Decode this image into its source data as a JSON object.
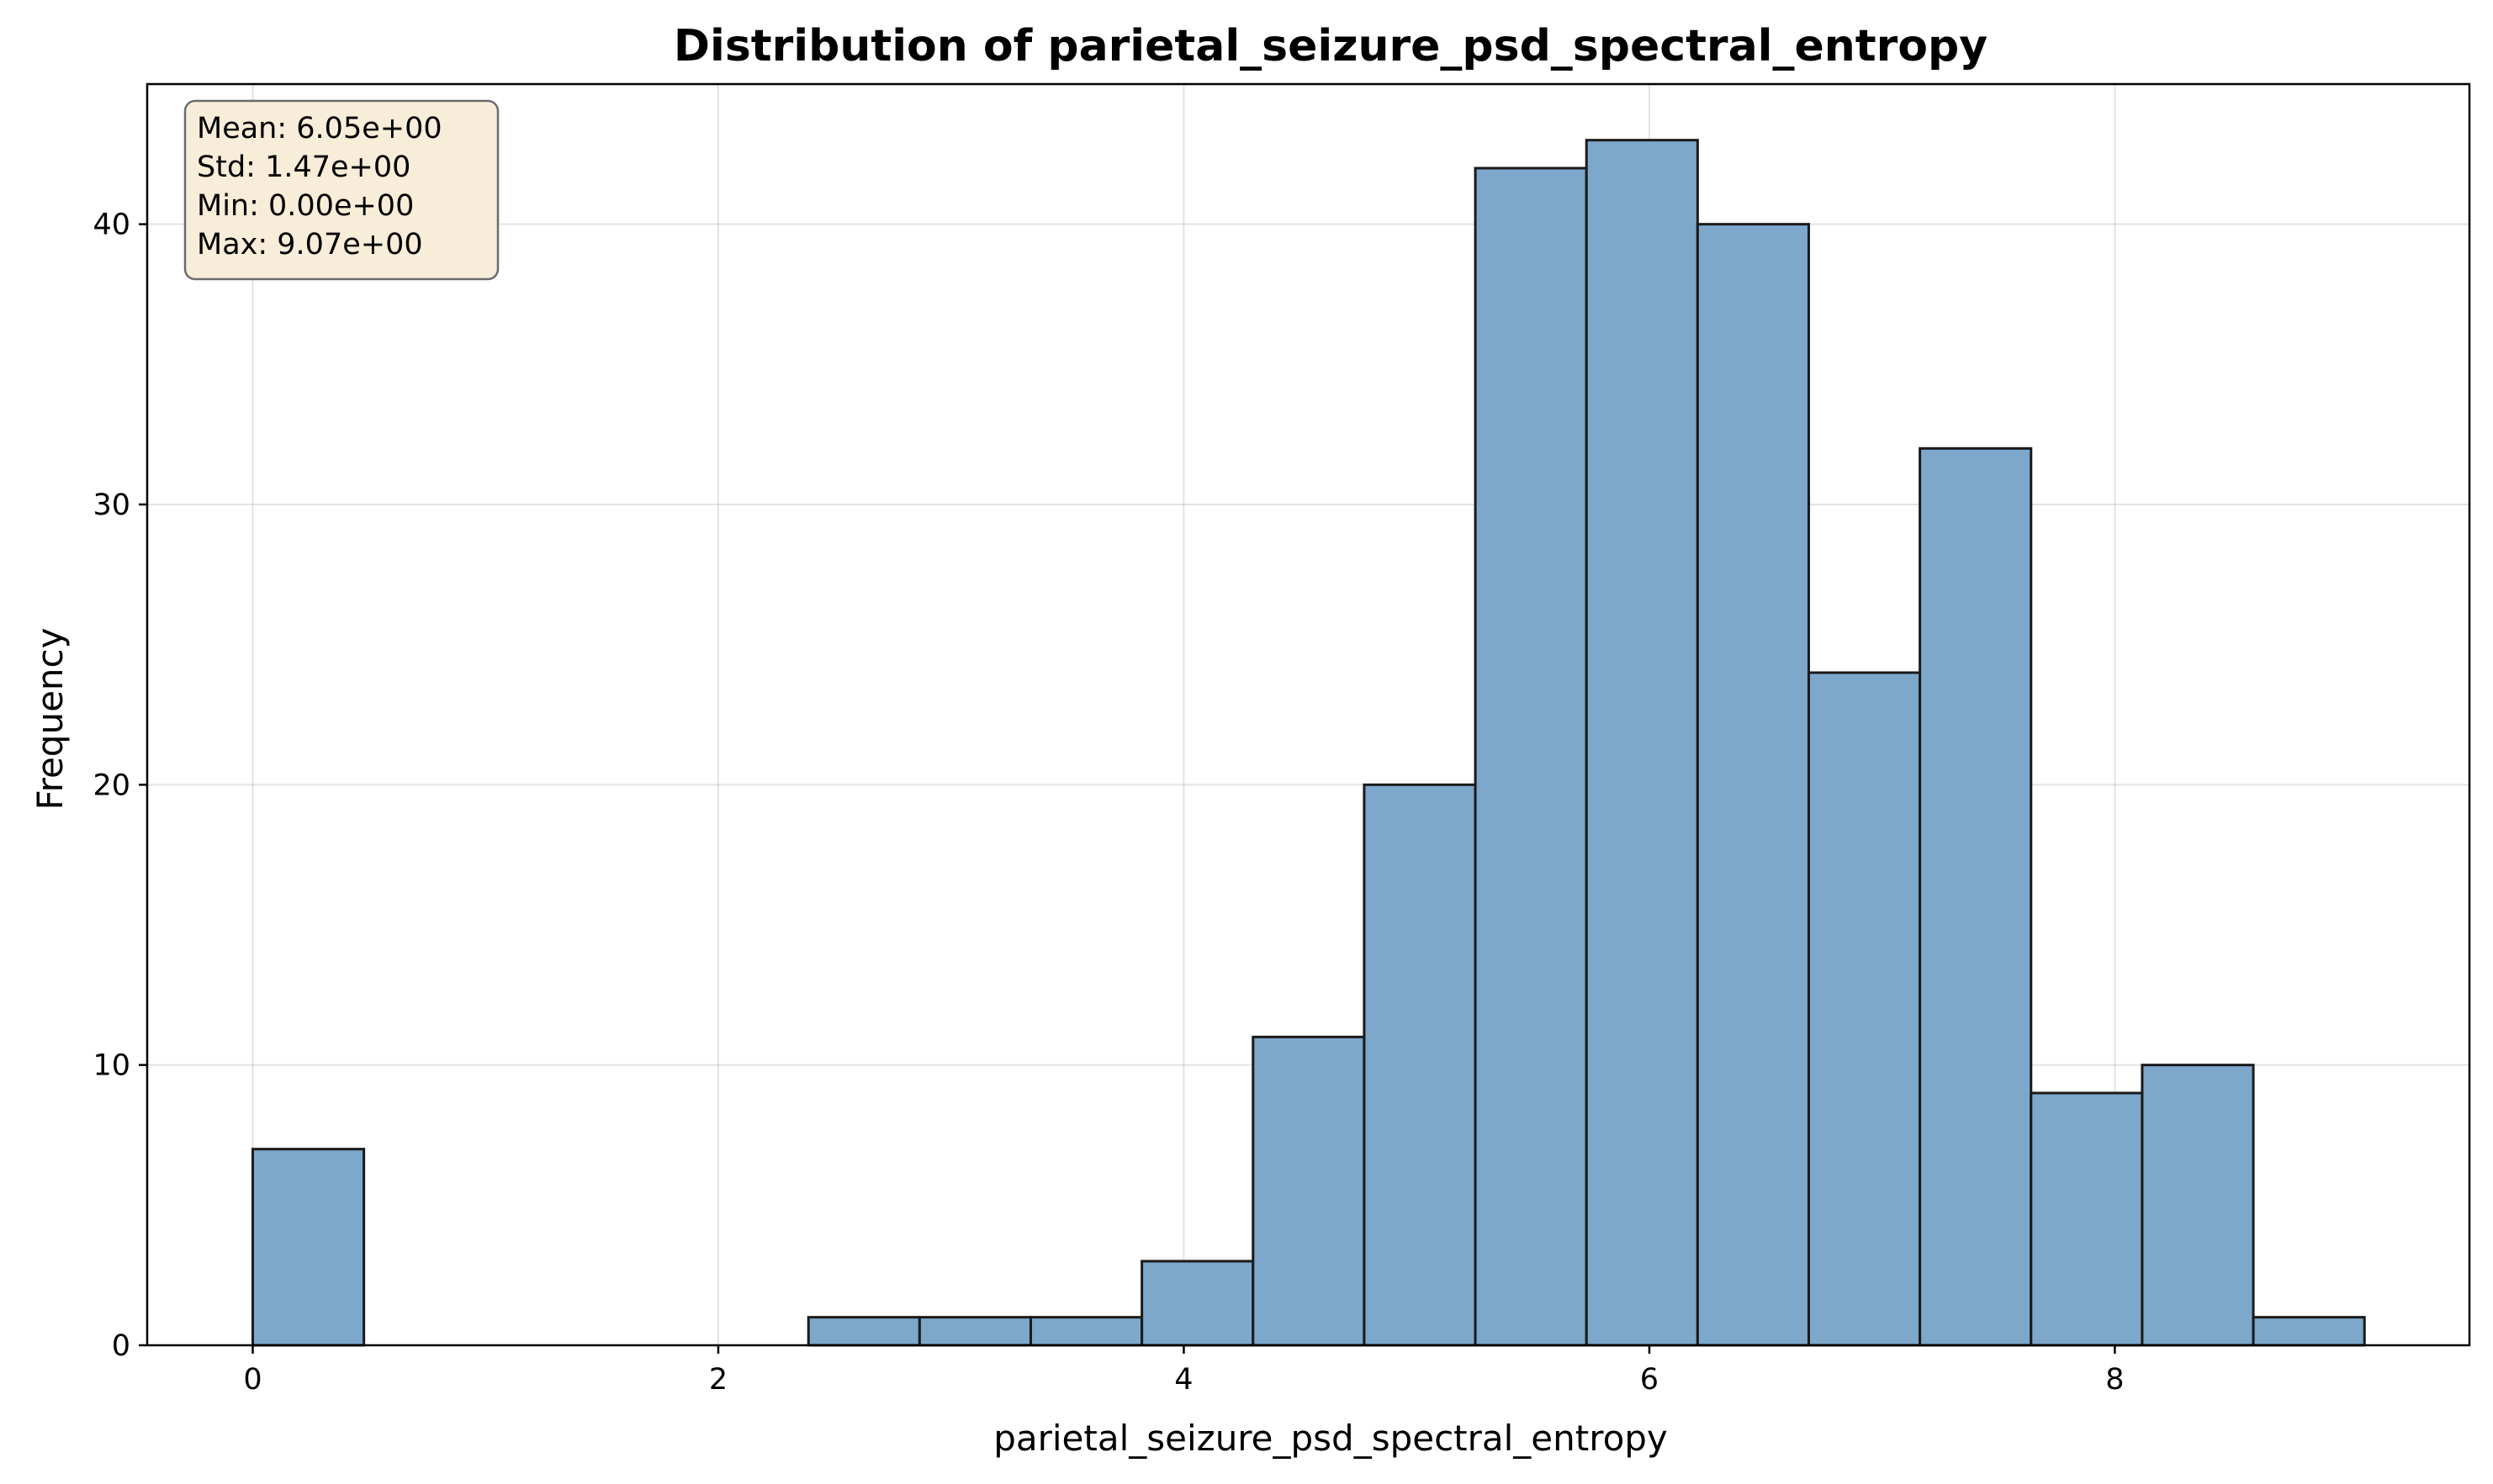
{
  "chart_data": {
    "type": "bar",
    "title": "Distribution of parietal_seizure_psd_spectral_entropy",
    "xlabel": "parietal_seizure_psd_spectral_entropy",
    "ylabel": "Frequency",
    "xlim": [
      -0.4535,
      9.5235
    ],
    "ylim": [
      0,
      45
    ],
    "x_ticks": [
      0,
      2,
      4,
      6,
      8
    ],
    "y_ticks": [
      0,
      10,
      20,
      30,
      40
    ],
    "grid": true,
    "bin_edges": [
      0.0,
      0.4775,
      0.955,
      1.4325,
      1.91,
      2.3875,
      2.865,
      3.3425,
      3.82,
      4.2975,
      4.775,
      5.2525,
      5.73,
      6.2075,
      6.685,
      7.1625,
      7.64,
      8.1175,
      8.595,
      9.0725
    ],
    "counts": [
      7,
      0,
      0,
      0,
      0,
      1,
      1,
      1,
      3,
      11,
      20,
      42,
      43,
      40,
      24,
      32,
      9,
      10,
      1
    ],
    "bar_color": "#7da7cb",
    "edge_color": "#1a1a1a",
    "stats_box": {
      "lines": [
        "Mean: 6.05e+00",
        "Std: 1.47e+00",
        "Min: 0.00e+00",
        "Max: 9.07e+00"
      ],
      "background": "#f8ecd6"
    }
  }
}
